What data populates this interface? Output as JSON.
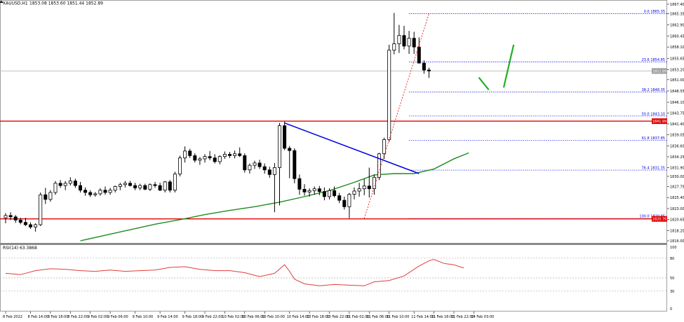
{
  "header": {
    "symbol": "XAUUSD,H1",
    "ohlc": "1853.08 1853.60 1851.44 1852.89"
  },
  "rsi_label": "RSI(14) 63.3868",
  "colors": {
    "bull_body": "#ffffff",
    "bear_body": "#000000",
    "candle_outline": "#000000",
    "ma": "#1e8c1e",
    "resistance": "#e00000",
    "trendline": "#0000e6",
    "fib_dotted": "#0000e6",
    "fib_diagonal": "#e00000",
    "rsi_line": "#e23b3b",
    "current_price_line": "#c0c0c0",
    "arrow": "#22b022"
  },
  "chart_data": [
    {
      "type": "candlestick",
      "title": "",
      "xlabel": "",
      "ylabel": "",
      "ylim": [
        1816.0,
        1867.4
      ],
      "y_ticks": [
        "1867.40",
        "1865.35",
        "1862.90",
        "1860.45",
        "1858.10",
        "1855.65",
        "1853.20",
        "1851.00",
        "1848.55",
        "1846.10",
        "1843.75",
        "1841.40",
        "1839.05",
        "1836.60",
        "1834.25",
        "1831.90",
        "1830.00",
        "1827.75",
        "1825.40",
        "1823.00",
        "1820.65",
        "1818.20",
        "1816.00"
      ],
      "x_tick_labels": [
        "8 Feb 2022",
        "8 Feb 14:00",
        "8 Feb 18:00",
        "8 Feb 22:00",
        "9 Feb 02:00",
        "9 Feb 06:00",
        "9 Feb 10:00",
        "9 Feb 14:00",
        "9 Feb 18:00",
        "9 Feb 22:00",
        "10 Feb 02:00",
        "10 Feb 06:00",
        "10 Feb 10:00",
        "10 Feb 14:00",
        "10 Feb 18:00",
        "10 Feb 22:00",
        "11 Feb 02:00",
        "11 Feb 06:00",
        "11 Feb 10:00",
        "11 Feb 14:00",
        "11 Feb 18:00",
        "11 Feb 22:00",
        "14 Feb 03:00"
      ],
      "current_price": "1852.89",
      "ohlc": [
        [
          1821.0,
          1822.0,
          1819.8,
          1821.5
        ],
        [
          1821.5,
          1822.2,
          1820.5,
          1821.2
        ],
        [
          1821.2,
          1821.6,
          1819.9,
          1820.5
        ],
        [
          1820.5,
          1821.0,
          1819.6,
          1820.0
        ],
        [
          1820.0,
          1821.0,
          1819.2,
          1819.5
        ],
        [
          1819.5,
          1820.0,
          1818.6,
          1819.0
        ],
        [
          1819.0,
          1819.8,
          1818.0,
          1819.5
        ],
        [
          1819.5,
          1826.5,
          1819.2,
          1826.0
        ],
        [
          1826.0,
          1827.5,
          1824.0,
          1825.0
        ],
        [
          1825.0,
          1827.0,
          1824.5,
          1826.5
        ],
        [
          1826.5,
          1829.0,
          1826.0,
          1828.5
        ],
        [
          1828.5,
          1829.2,
          1827.5,
          1828.0
        ],
        [
          1828.0,
          1829.0,
          1827.0,
          1828.5
        ],
        [
          1828.5,
          1829.8,
          1828.0,
          1829.0
        ],
        [
          1829.0,
          1829.5,
          1827.5,
          1828.0
        ],
        [
          1828.0,
          1828.8,
          1826.5,
          1827.0
        ],
        [
          1827.0,
          1827.6,
          1825.8,
          1826.5
        ],
        [
          1826.5,
          1827.0,
          1825.5,
          1826.0
        ],
        [
          1826.0,
          1826.6,
          1825.6,
          1826.2
        ],
        [
          1826.2,
          1827.4,
          1825.8,
          1827.0
        ],
        [
          1827.0,
          1827.8,
          1826.0,
          1826.5
        ],
        [
          1826.5,
          1827.5,
          1826.0,
          1827.0
        ],
        [
          1827.0,
          1828.0,
          1826.5,
          1827.8
        ],
        [
          1827.8,
          1828.6,
          1827.0,
          1828.2
        ],
        [
          1828.2,
          1829.0,
          1827.6,
          1828.5
        ],
        [
          1828.5,
          1829.0,
          1827.8,
          1828.0
        ],
        [
          1828.0,
          1828.6,
          1827.0,
          1827.5
        ],
        [
          1827.5,
          1828.4,
          1827.0,
          1828.0
        ],
        [
          1828.0,
          1828.4,
          1827.0,
          1827.2
        ],
        [
          1827.2,
          1828.5,
          1826.8,
          1828.2
        ],
        [
          1828.2,
          1828.8,
          1827.5,
          1828.0
        ],
        [
          1828.0,
          1828.6,
          1826.8,
          1827.0
        ],
        [
          1827.0,
          1829.0,
          1826.5,
          1828.8
        ],
        [
          1828.8,
          1829.2,
          1826.5,
          1827.0
        ],
        [
          1827.0,
          1831.0,
          1826.5,
          1830.5
        ],
        [
          1830.5,
          1834.5,
          1830.0,
          1834.0
        ],
        [
          1834.0,
          1836.5,
          1833.0,
          1835.5
        ],
        [
          1835.5,
          1836.0,
          1834.0,
          1834.5
        ],
        [
          1834.5,
          1835.0,
          1833.0,
          1833.5
        ],
        [
          1833.5,
          1834.2,
          1832.5,
          1833.8
        ],
        [
          1833.8,
          1834.8,
          1833.0,
          1834.3
        ],
        [
          1834.3,
          1835.5,
          1833.5,
          1834.0
        ],
        [
          1834.0,
          1834.8,
          1832.8,
          1833.2
        ],
        [
          1833.2,
          1834.6,
          1832.6,
          1834.3
        ],
        [
          1834.3,
          1835.4,
          1833.8,
          1834.8
        ],
        [
          1834.8,
          1835.3,
          1834.0,
          1834.5
        ],
        [
          1834.5,
          1835.6,
          1833.9,
          1834.9
        ],
        [
          1834.9,
          1836.3,
          1834.2,
          1834.5
        ],
        [
          1834.5,
          1835.0,
          1830.8,
          1831.4
        ],
        [
          1831.4,
          1832.8,
          1830.6,
          1832.4
        ],
        [
          1832.4,
          1833.4,
          1831.6,
          1832.9
        ],
        [
          1832.9,
          1833.6,
          1831.6,
          1832.1
        ],
        [
          1832.1,
          1832.8,
          1830.6,
          1831.4
        ],
        [
          1831.4,
          1832.1,
          1829.7,
          1830.4
        ],
        [
          1830.4,
          1832.9,
          1822.2,
          1831.9
        ],
        [
          1831.9,
          1841.6,
          1823.7,
          1841.0
        ],
        [
          1841.0,
          1841.9,
          1835.7,
          1836.1
        ],
        [
          1836.1,
          1836.6,
          1829.6,
          1835.6
        ],
        [
          1835.6,
          1836.1,
          1828.5,
          1829.5
        ],
        [
          1829.5,
          1830.4,
          1826.0,
          1827.2
        ],
        [
          1827.2,
          1828.3,
          1825.8,
          1826.6
        ],
        [
          1826.6,
          1827.4,
          1825.6,
          1826.9
        ],
        [
          1826.9,
          1827.8,
          1826.0,
          1827.3
        ],
        [
          1827.3,
          1827.9,
          1825.9,
          1826.7
        ],
        [
          1826.7,
          1827.6,
          1824.8,
          1825.6
        ],
        [
          1825.6,
          1827.4,
          1825.0,
          1826.9
        ],
        [
          1826.9,
          1827.8,
          1825.4,
          1825.8
        ],
        [
          1825.8,
          1826.4,
          1824.2,
          1824.8
        ],
        [
          1824.8,
          1825.6,
          1822.8,
          1823.4
        ],
        [
          1823.4,
          1826.4,
          1820.9,
          1826.1
        ],
        [
          1826.1,
          1827.6,
          1825.0,
          1826.8
        ],
        [
          1826.8,
          1828.6,
          1825.6,
          1827.3
        ],
        [
          1827.3,
          1829.4,
          1825.9,
          1827.9
        ],
        [
          1827.9,
          1831.9,
          1825.4,
          1827.3
        ],
        [
          1827.3,
          1830.4,
          1826.0,
          1829.8
        ],
        [
          1829.8,
          1835.1,
          1829.2,
          1834.9
        ],
        [
          1834.9,
          1838.4,
          1833.8,
          1838.0
        ],
        [
          1838.0,
          1858.6,
          1837.5,
          1857.4
        ],
        [
          1857.4,
          1865.5,
          1856.5,
          1858.8
        ],
        [
          1858.8,
          1862.9,
          1856.8,
          1860.6
        ],
        [
          1860.6,
          1862.7,
          1857.6,
          1858.3
        ],
        [
          1858.3,
          1861.6,
          1856.6,
          1860.0
        ],
        [
          1860.0,
          1861.4,
          1856.6,
          1858.1
        ],
        [
          1858.1,
          1860.2,
          1854.6,
          1854.6
        ],
        [
          1854.6,
          1855.2,
          1852.3,
          1853.1
        ],
        [
          1853.1,
          1853.6,
          1851.4,
          1852.9
        ]
      ],
      "moving_average": [
        [
          15,
          1816.0
        ],
        [
          20,
          1817.2
        ],
        [
          25,
          1818.4
        ],
        [
          30,
          1819.6
        ],
        [
          35,
          1820.6
        ],
        [
          40,
          1821.7
        ],
        [
          45,
          1822.6
        ],
        [
          50,
          1823.4
        ],
        [
          55,
          1824.4
        ],
        [
          60,
          1825.6
        ],
        [
          65,
          1826.9
        ],
        [
          70,
          1828.7
        ],
        [
          74,
          1830.3
        ],
        [
          78,
          1830.6
        ],
        [
          82,
          1830.6
        ],
        [
          86,
          1831.6
        ],
        [
          90,
          1833.8
        ],
        [
          93,
          1835.1
        ]
      ],
      "trendline": [
        [
          56,
          1841.6
        ],
        [
          83,
          1830.6
        ]
      ],
      "resistance_level": "1841.99",
      "support_level": "1820.76",
      "fibonacci": [
        {
          "label": "0.0 1865.35",
          "value": 1865.35
        },
        {
          "label": "23.6 1854.85",
          "value": 1854.85
        },
        {
          "label": "38.2 1848.35",
          "value": 1848.35
        },
        {
          "label": "50.0 1843.10",
          "value": 1843.1
        },
        {
          "label": "61.8 1837.85",
          "value": 1837.85
        },
        {
          "label": "76.4 1831.35",
          "value": 1831.35
        },
        {
          "label": "100.0 1820.85",
          "value": 1820.85
        }
      ],
      "fib_anchor": [
        [
          72,
          1820.85
        ],
        [
          85,
          1865.35
        ]
      ],
      "projection_arrow": [
        [
          95,
          1851.5
        ],
        [
          97,
          1848.8
        ],
        [
          100,
          1849.3
        ],
        [
          102,
          1858.6
        ]
      ]
    },
    {
      "type": "line",
      "title": "",
      "name": "RSI(14)",
      "ylim": [
        0,
        100
      ],
      "y_ticks": [
        "100",
        "80",
        "50",
        "30",
        "0"
      ],
      "levels": [
        80,
        50,
        30
      ],
      "x": [
        0,
        3,
        6,
        9,
        12,
        15,
        18,
        21,
        24,
        27,
        30,
        33,
        36,
        39,
        42,
        45,
        48,
        51,
        54,
        56,
        57,
        58,
        60,
        63,
        66,
        69,
        72,
        74,
        77,
        80,
        83,
        85,
        86,
        88,
        90,
        92
      ],
      "values": [
        57,
        55,
        61,
        64,
        63,
        61,
        60,
        62,
        60,
        61,
        62,
        66,
        67,
        63,
        61,
        61,
        58,
        52,
        57,
        70,
        60,
        48,
        41,
        38,
        40,
        39,
        38,
        44,
        46,
        53,
        68,
        76,
        78,
        72,
        70,
        65
      ]
    }
  ]
}
